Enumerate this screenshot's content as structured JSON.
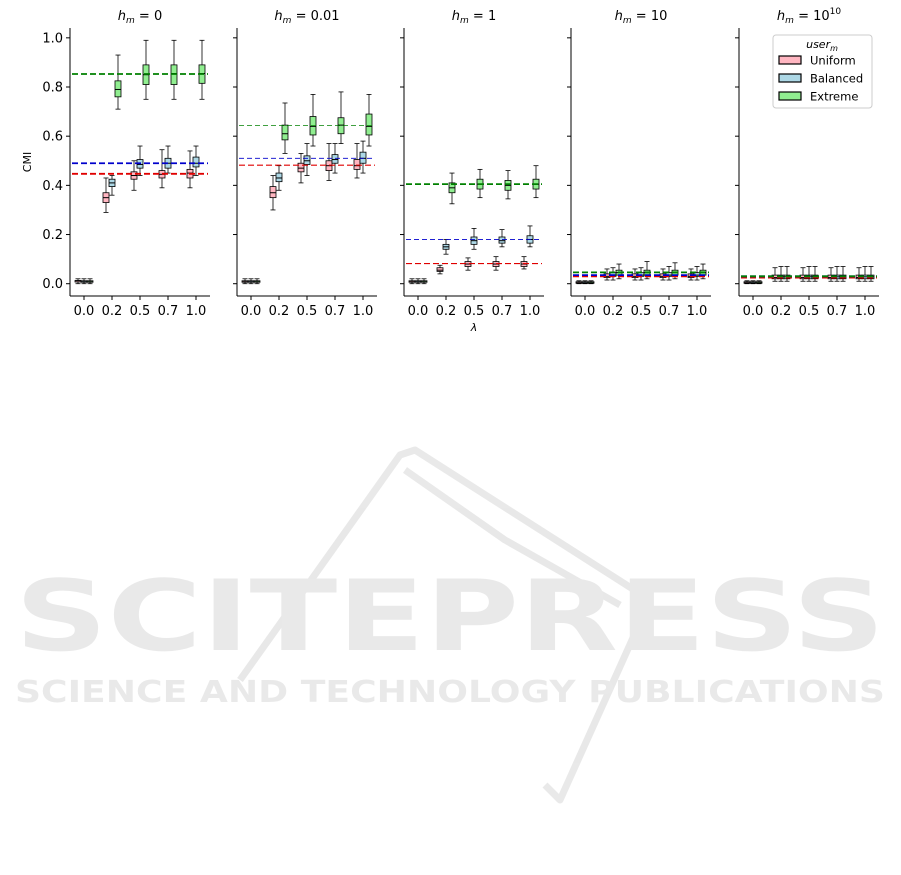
{
  "figure": {
    "ylabel": "CMI",
    "xlabel": "λ",
    "legend_title_base": "user",
    "legend_title_sub": "m",
    "watermark_main": "SCITEPRESS",
    "watermark_sub": "SCIENCE AND TECHNOLOGY PUBLICATIONS"
  },
  "colors": {
    "Uniform": "#ffb6c1",
    "Balanced": "#add8e6",
    "Extreme": "#90ee90",
    "ref_Uniform": "#e00000",
    "ref_Balanced": "#0000cc",
    "ref_Extreme": "#008000"
  },
  "chart_data": {
    "type": "box",
    "legend_placement": "top-right of last panel",
    "grid": false,
    "categories": [
      "0.0",
      "0.2",
      "0.5",
      "0.7",
      "1.0"
    ],
    "series_names": [
      "Uniform",
      "Balanced",
      "Extreme"
    ],
    "y_ticks": [
      "0.0",
      "0.2",
      "0.4",
      "0.6",
      "0.8",
      "1.0"
    ],
    "ylim": [
      -0.05,
      1.04
    ],
    "panels": [
      {
        "title_base": "h",
        "title_sub": "m",
        "title_rest": " = 0",
        "title_sup": "",
        "reference_lines": {
          "Uniform": 0.447,
          "Balanced": 0.49,
          "Extreme": 0.853
        },
        "ref_style": "thick",
        "boxes": {
          "Uniform": [
            [
              0,
              0.01,
              0.012,
              0.013,
              0.02
            ],
            [
              0.29,
              0.33,
              0.35,
              0.37,
              0.43
            ],
            [
              0.38,
              0.425,
              0.44,
              0.455,
              0.5
            ],
            [
              0.39,
              0.43,
              0.445,
              0.46,
              0.545
            ],
            [
              0.39,
              0.43,
              0.45,
              0.465,
              0.54
            ]
          ],
          "Balanced": [
            [
              0,
              0.008,
              0.01,
              0.012,
              0.02
            ],
            [
              0.36,
              0.395,
              0.41,
              0.425,
              0.44
            ],
            [
              0.44,
              0.47,
              0.485,
              0.505,
              0.56
            ],
            [
              0.45,
              0.47,
              0.49,
              0.51,
              0.56
            ],
            [
              0.44,
              0.475,
              0.49,
              0.515,
              0.56
            ]
          ],
          "Extreme": [
            [
              0,
              0.008,
              0.01,
              0.012,
              0.02
            ],
            [
              0.71,
              0.76,
              0.79,
              0.825,
              0.93
            ],
            [
              0.75,
              0.81,
              0.85,
              0.89,
              0.99
            ],
            [
              0.75,
              0.81,
              0.855,
              0.89,
              0.99
            ],
            [
              0.75,
              0.815,
              0.855,
              0.89,
              0.99
            ]
          ]
        }
      },
      {
        "title_base": "h",
        "title_sub": "m",
        "title_rest": " = 0.01",
        "title_sup": "",
        "reference_lines": {
          "Uniform": 0.482,
          "Balanced": 0.51,
          "Extreme": 0.643
        },
        "ref_style": "mixed",
        "boxes": {
          "Uniform": [
            [
              0,
              0.008,
              0.01,
              0.012,
              0.02
            ],
            [
              0.3,
              0.35,
              0.37,
              0.395,
              0.44
            ],
            [
              0.41,
              0.455,
              0.47,
              0.49,
              0.53
            ],
            [
              0.42,
              0.46,
              0.48,
              0.5,
              0.57
            ],
            [
              0.43,
              0.465,
              0.48,
              0.505,
              0.57
            ]
          ],
          "Balanced": [
            [
              0,
              0.008,
              0.01,
              0.012,
              0.02
            ],
            [
              0.38,
              0.415,
              0.43,
              0.45,
              0.48
            ],
            [
              0.44,
              0.485,
              0.5,
              0.52,
              0.57
            ],
            [
              0.45,
              0.49,
              0.505,
              0.525,
              0.57
            ],
            [
              0.45,
              0.49,
              0.51,
              0.535,
              0.58
            ]
          ],
          "Extreme": [
            [
              0,
              0.008,
              0.01,
              0.012,
              0.02
            ],
            [
              0.53,
              0.585,
              0.61,
              0.645,
              0.735
            ],
            [
              0.56,
              0.605,
              0.64,
              0.68,
              0.77
            ],
            [
              0.57,
              0.61,
              0.645,
              0.675,
              0.78
            ],
            [
              0.56,
              0.605,
              0.64,
              0.69,
              0.77
            ]
          ]
        }
      },
      {
        "title_base": "h",
        "title_sub": "m",
        "title_rest": " = 1",
        "title_sup": "",
        "reference_lines": {
          "Uniform": 0.082,
          "Balanced": 0.18,
          "Extreme": 0.405
        },
        "ref_style": "mixed",
        "boxes": {
          "Uniform": [
            [
              0,
              0.008,
              0.01,
              0.012,
              0.02
            ],
            [
              0.04,
              0.05,
              0.055,
              0.065,
              0.075
            ],
            [
              0.055,
              0.07,
              0.08,
              0.09,
              0.105
            ],
            [
              0.055,
              0.07,
              0.08,
              0.09,
              0.11
            ],
            [
              0.06,
              0.07,
              0.08,
              0.09,
              0.11
            ]
          ],
          "Balanced": [
            [
              0,
              0.008,
              0.01,
              0.012,
              0.02
            ],
            [
              0.12,
              0.14,
              0.15,
              0.16,
              0.18
            ],
            [
              0.14,
              0.16,
              0.175,
              0.19,
              0.225
            ],
            [
              0.15,
              0.165,
              0.175,
              0.19,
              0.22
            ],
            [
              0.15,
              0.165,
              0.18,
              0.195,
              0.235
            ]
          ],
          "Extreme": [
            [
              0,
              0.008,
              0.01,
              0.012,
              0.02
            ],
            [
              0.325,
              0.37,
              0.39,
              0.41,
              0.45
            ],
            [
              0.35,
              0.385,
              0.405,
              0.425,
              0.465
            ],
            [
              0.345,
              0.38,
              0.4,
              0.42,
              0.46
            ],
            [
              0.35,
              0.385,
              0.405,
              0.425,
              0.48
            ]
          ]
        }
      },
      {
        "title_base": "h",
        "title_sub": "m",
        "title_rest": " = 10",
        "title_sup": "",
        "reference_lines": {
          "Uniform": 0.03,
          "Balanced": 0.035,
          "Extreme": 0.046
        },
        "ref_style": "thick",
        "boxes": {
          "Uniform": [
            [
              0,
              0.004,
              0.006,
              0.008,
              0.012
            ],
            [
              0.015,
              0.025,
              0.03,
              0.04,
              0.06
            ],
            [
              0.015,
              0.025,
              0.03,
              0.04,
              0.06
            ],
            [
              0.015,
              0.025,
              0.03,
              0.04,
              0.06
            ],
            [
              0.015,
              0.025,
              0.03,
              0.04,
              0.06
            ]
          ],
          "Balanced": [
            [
              0,
              0.004,
              0.006,
              0.008,
              0.012
            ],
            [
              0.015,
              0.03,
              0.035,
              0.045,
              0.065
            ],
            [
              0.015,
              0.03,
              0.035,
              0.045,
              0.065
            ],
            [
              0.015,
              0.03,
              0.035,
              0.045,
              0.07
            ],
            [
              0.015,
              0.03,
              0.035,
              0.045,
              0.07
            ]
          ],
          "Extreme": [
            [
              0,
              0.004,
              0.006,
              0.008,
              0.012
            ],
            [
              0.02,
              0.035,
              0.045,
              0.055,
              0.08
            ],
            [
              0.02,
              0.035,
              0.045,
              0.055,
              0.09
            ],
            [
              0.02,
              0.035,
              0.045,
              0.055,
              0.085
            ],
            [
              0.02,
              0.035,
              0.045,
              0.055,
              0.08
            ]
          ]
        }
      },
      {
        "title_base": "h",
        "title_sub": "m",
        "title_rest": " = 10",
        "title_sup": "10",
        "reference_lines": {
          "Uniform": 0.025,
          "Balanced": 0.03,
          "Extreme": 0.03
        },
        "ref_style": "thick",
        "boxes": {
          "Uniform": [
            [
              0,
              0.004,
              0.006,
              0.008,
              0.012
            ],
            [
              0.01,
              0.02,
              0.025,
              0.035,
              0.065
            ],
            [
              0.01,
              0.02,
              0.025,
              0.035,
              0.065
            ],
            [
              0.01,
              0.02,
              0.025,
              0.035,
              0.065
            ],
            [
              0.01,
              0.02,
              0.025,
              0.035,
              0.065
            ]
          ],
          "Balanced": [
            [
              0,
              0.004,
              0.006,
              0.008,
              0.012
            ],
            [
              0.01,
              0.02,
              0.028,
              0.035,
              0.07
            ],
            [
              0.01,
              0.02,
              0.028,
              0.035,
              0.07
            ],
            [
              0.01,
              0.02,
              0.028,
              0.035,
              0.07
            ],
            [
              0.01,
              0.02,
              0.028,
              0.035,
              0.07
            ]
          ],
          "Extreme": [
            [
              0,
              0.004,
              0.006,
              0.008,
              0.012
            ],
            [
              0.01,
              0.02,
              0.028,
              0.035,
              0.07
            ],
            [
              0.01,
              0.02,
              0.028,
              0.035,
              0.07
            ],
            [
              0.01,
              0.02,
              0.028,
              0.035,
              0.07
            ],
            [
              0.01,
              0.02,
              0.028,
              0.035,
              0.07
            ]
          ]
        }
      }
    ]
  }
}
